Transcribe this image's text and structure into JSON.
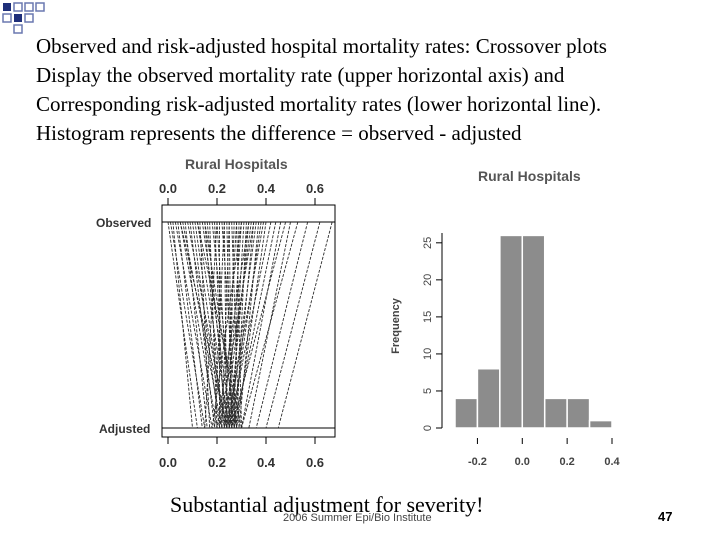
{
  "slide": {
    "lines": [
      "Observed and risk-adjusted hospital mortality rates: Crossover plots",
      "Display the observed mortality rate (upper horizontal axis) and",
      "Corresponding risk-adjusted mortality rates (lower horizontal line).",
      "Histogram represents the difference = observed - adjusted"
    ],
    "caption": "Substantial adjustment for severity!",
    "footer": "2006 Summer Epi/Bio Institute",
    "page_number": "47"
  },
  "colors": {
    "lines": "#2a2a2a",
    "bars": "#8c8c8c",
    "text": "#000000"
  },
  "chart_data": [
    {
      "type": "line",
      "title": "Rural Hospitals",
      "top_axis_label": "Observed",
      "bottom_axis_label": "Adjusted",
      "axis_ticks": [
        0.0,
        0.2,
        0.4,
        0.6
      ],
      "tick_labels": [
        "0.0",
        "0.2",
        "0.4",
        "0.6"
      ],
      "xlim": [
        0.0,
        0.7
      ],
      "segments": [
        [
          0.0,
          0.12
        ],
        [
          0.01,
          0.15
        ],
        [
          0.02,
          0.1
        ],
        [
          0.03,
          0.18
        ],
        [
          0.04,
          0.14
        ],
        [
          0.05,
          0.2
        ],
        [
          0.06,
          0.22
        ],
        [
          0.07,
          0.16
        ],
        [
          0.08,
          0.24
        ],
        [
          0.09,
          0.19
        ],
        [
          0.1,
          0.21
        ],
        [
          0.11,
          0.23
        ],
        [
          0.12,
          0.25
        ],
        [
          0.13,
          0.17
        ],
        [
          0.14,
          0.26
        ],
        [
          0.15,
          0.22
        ],
        [
          0.16,
          0.24
        ],
        [
          0.17,
          0.2
        ],
        [
          0.18,
          0.27
        ],
        [
          0.19,
          0.23
        ],
        [
          0.2,
          0.25
        ],
        [
          0.21,
          0.21
        ],
        [
          0.22,
          0.28
        ],
        [
          0.23,
          0.24
        ],
        [
          0.24,
          0.26
        ],
        [
          0.25,
          0.22
        ],
        [
          0.26,
          0.29
        ],
        [
          0.27,
          0.25
        ],
        [
          0.28,
          0.23
        ],
        [
          0.29,
          0.27
        ],
        [
          0.3,
          0.24
        ],
        [
          0.31,
          0.26
        ],
        [
          0.32,
          0.28
        ],
        [
          0.33,
          0.25
        ],
        [
          0.34,
          0.23
        ],
        [
          0.35,
          0.27
        ],
        [
          0.36,
          0.25
        ],
        [
          0.37,
          0.29
        ],
        [
          0.38,
          0.26
        ],
        [
          0.39,
          0.24
        ],
        [
          0.4,
          0.28
        ],
        [
          0.42,
          0.25
        ],
        [
          0.44,
          0.27
        ],
        [
          0.46,
          0.3
        ],
        [
          0.48,
          0.26
        ],
        [
          0.5,
          0.33
        ],
        [
          0.53,
          0.3
        ],
        [
          0.57,
          0.36
        ],
        [
          0.62,
          0.4
        ],
        [
          0.67,
          0.45
        ],
        [
          0.2,
          0.15
        ],
        [
          0.23,
          0.19
        ],
        [
          0.28,
          0.3
        ],
        [
          0.33,
          0.2
        ],
        [
          0.05,
          0.24
        ],
        [
          0.15,
          0.28
        ],
        [
          0.25,
          0.26
        ],
        [
          0.35,
          0.21
        ],
        [
          0.12,
          0.3
        ],
        [
          0.3,
          0.18
        ]
      ]
    },
    {
      "type": "bar",
      "title": "Rural Hospitals",
      "ylabel": "Frequency",
      "bin_edges": [
        -0.3,
        -0.2,
        -0.1,
        0.0,
        0.1,
        0.2,
        0.3,
        0.4
      ],
      "values": [
        4,
        8,
        26,
        26,
        4,
        4,
        1
      ],
      "x_ticks": [
        -0.2,
        0.0,
        0.2,
        0.4
      ],
      "x_tick_labels": [
        "-0.2",
        "0.0",
        "0.2",
        "0.4"
      ],
      "y_ticks": [
        0,
        5,
        10,
        15,
        20,
        25
      ],
      "y_tick_labels": [
        "0",
        "5",
        "10",
        "15",
        "20",
        "25"
      ],
      "xlim": [
        -0.3,
        0.45
      ],
      "ylim": [
        0,
        27
      ]
    }
  ]
}
